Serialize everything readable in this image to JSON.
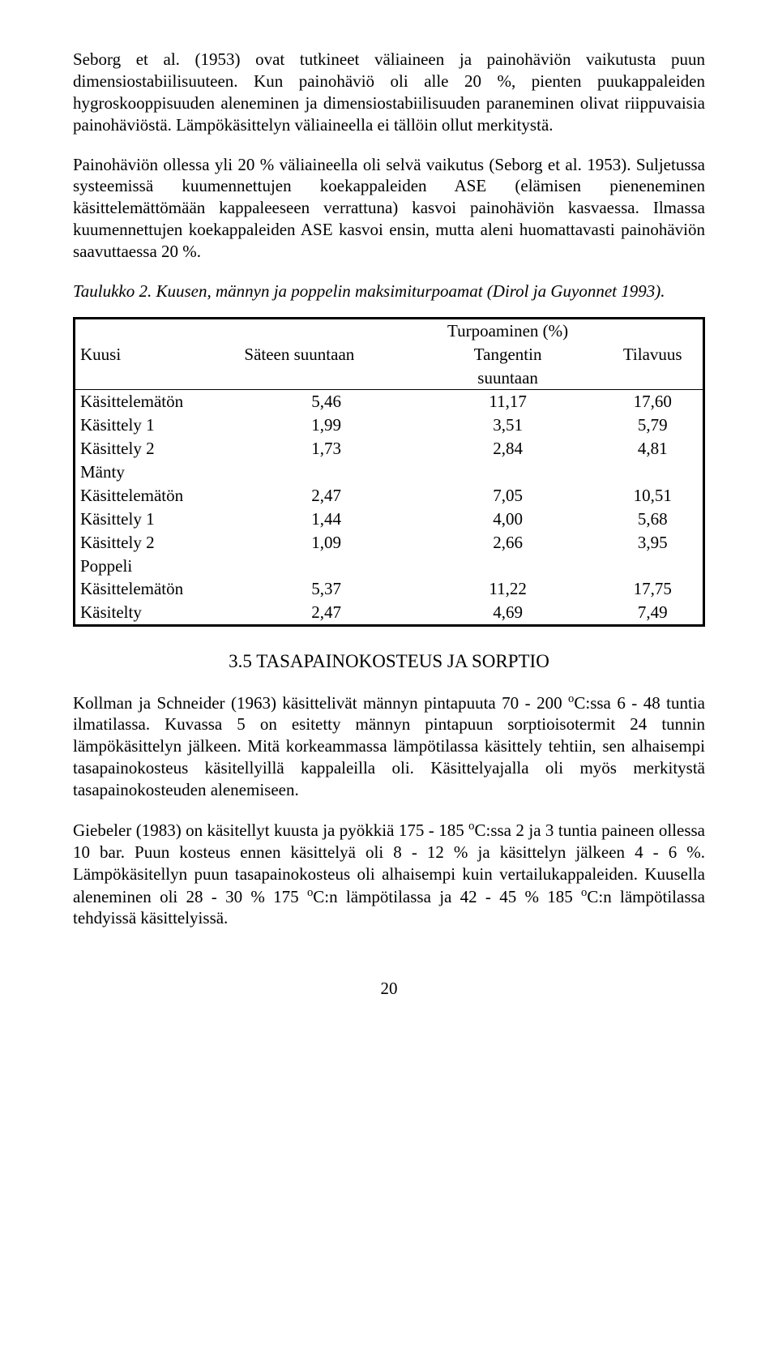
{
  "paragraphs": {
    "p1": "Seborg et al. (1953) ovat tutkineet väliaineen ja painohäviön vaikutusta puun dimensiostabiilisuuteen. Kun painohäviö oli alle 20 %, pienten puukappaleiden hygroskooppisuuden aleneminen ja dimensiostabiilisuuden paraneminen olivat riippuvaisia painohäviöstä. Lämpökäsittelyn väliaineella ei tällöin ollut merkitystä.",
    "p2": "Painohäviön ollessa yli 20 % väliaineella oli selvä vaikutus (Seborg et al. 1953). Suljetussa systeemissä kuumennettujen koekappaleiden ASE (elämisen pieneneminen käsittelemättömään kappaleeseen verrattuna) kasvoi painohäviön kasvaessa. Ilmassa kuumennettujen koekappaleiden ASE kasvoi ensin, mutta aleni huomattavasti painohäviön saavuttaessa 20 %.",
    "caption": "Taulukko 2. Kuusen, männyn ja poppelin maksimiturpoamat (Dirol ja Guyonnet 1993).",
    "p3_pre": "Kollman ja Schneider (1963) käsittelivät männyn pintapuuta 70 - 200 ",
    "p3_post": "C:ssa 6 - 48 tuntia ilmatilassa. Kuvassa 5 on esitetty männyn pintapuun sorptioisotermit 24 tunnin lämpökäsittelyn jälkeen. Mitä korkeammassa lämpötilassa käsittely tehtiin, sen alhaisempi tasapainokosteus käsitellyillä kappaleilla oli. Käsittelyajalla oli myös merkitystä tasapainokosteuden alenemiseen.",
    "p4_a": "Giebeler (1983) on käsitellyt kuusta ja pyökkiä 175 - 185 ",
    "p4_b": "C:ssa 2 ja 3 tuntia paineen ollessa 10 bar. Puun kosteus ennen käsittelyä oli 8 - 12 % ja käsittelyn jälkeen 4 - 6 %. Lämpökäsitellyn puun tasapainokosteus oli alhaisempi kuin vertailukappaleiden. Kuusella aleneminen oli 28 - 30 % 175 ",
    "p4_c": "C:n lämpötilassa ja 42 - 45 % 185 ",
    "p4_d": "C:n lämpötilassa tehdyissä käsittelyissä."
  },
  "section_heading": "3.5 TASAPAINOKOSTEUS JA SORPTIO",
  "table": {
    "header_span": "Turpoaminen (%)",
    "col0_group1": "Kuusi",
    "col1": "Säteen suuntaan",
    "col2a": "Tangentin",
    "col2b": "suuntaan",
    "col3": "Tilavuus",
    "rows": [
      {
        "label": "Käsittelemätön",
        "c1": "5,46",
        "c2": "11,17",
        "c3": "17,60"
      },
      {
        "label": "Käsittely 1",
        "c1": "1,99",
        "c2": "3,51",
        "c3": "5,79"
      },
      {
        "label": "Käsittely 2",
        "c1": "1,73",
        "c2": "2,84",
        "c3": "4,81"
      },
      {
        "label": "Mänty",
        "c1": "",
        "c2": "",
        "c3": ""
      },
      {
        "label": "Käsittelemätön",
        "c1": "2,47",
        "c2": "7,05",
        "c3": "10,51"
      },
      {
        "label": "Käsittely 1",
        "c1": "1,44",
        "c2": "4,00",
        "c3": "5,68"
      },
      {
        "label": "Käsittely 2",
        "c1": "1,09",
        "c2": "2,66",
        "c3": "3,95"
      },
      {
        "label": "Poppeli",
        "c1": "",
        "c2": "",
        "c3": ""
      },
      {
        "label": "Käsittelemätön",
        "c1": "5,37",
        "c2": "11,22",
        "c3": "17,75"
      },
      {
        "label": "Käsitelty",
        "c1": "2,47",
        "c2": "4,69",
        "c3": "7,49"
      }
    ]
  },
  "degree": "o",
  "page_number": "20"
}
